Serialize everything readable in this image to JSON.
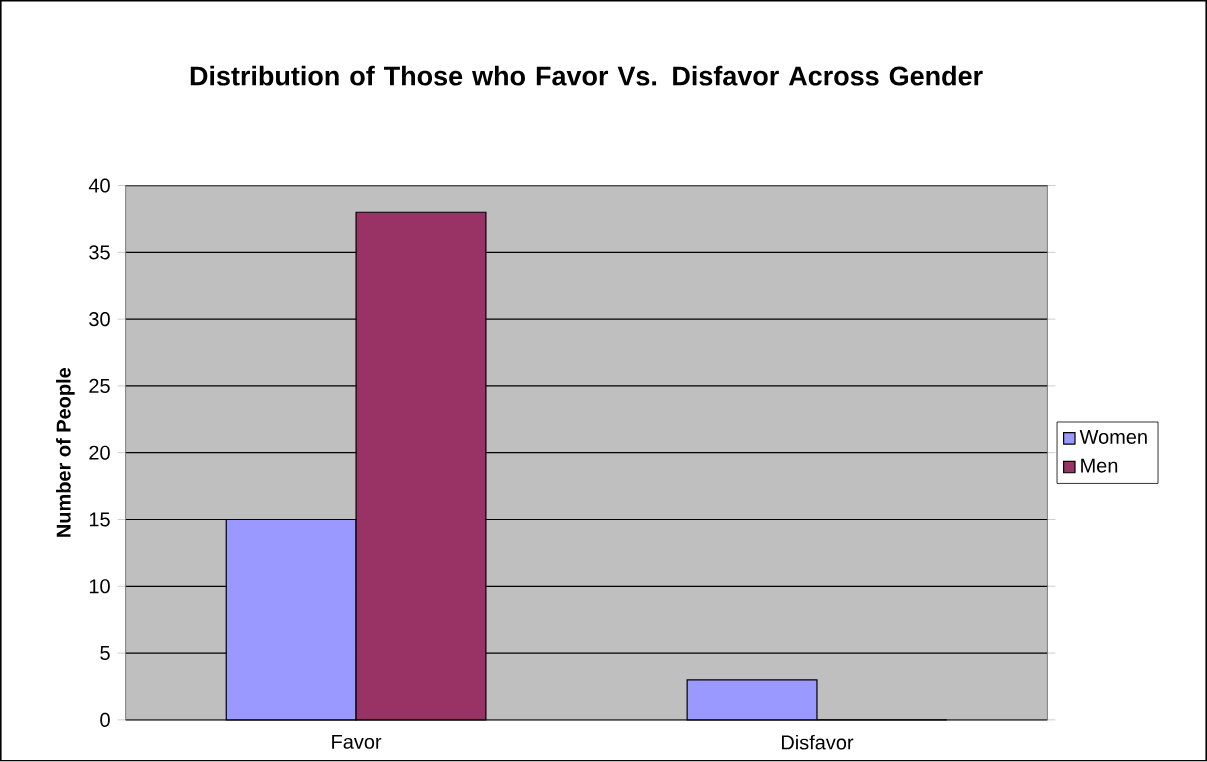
{
  "chart_data": {
    "type": "bar",
    "title": "Distribution of Those who Favor Vs. Disfavor Across Gender",
    "ylabel": "Number of People",
    "categories": [
      "Favor",
      "Disfavor"
    ],
    "series": [
      {
        "name": "Women",
        "color": "#9999ff",
        "values": [
          15,
          3
        ]
      },
      {
        "name": "Men",
        "color": "#993366",
        "values": [
          38,
          0
        ]
      }
    ],
    "ylim": [
      0,
      40
    ],
    "yticks": [
      0,
      5,
      10,
      15,
      20,
      25,
      30,
      35,
      40
    ],
    "grid": "y",
    "legend": "right"
  }
}
